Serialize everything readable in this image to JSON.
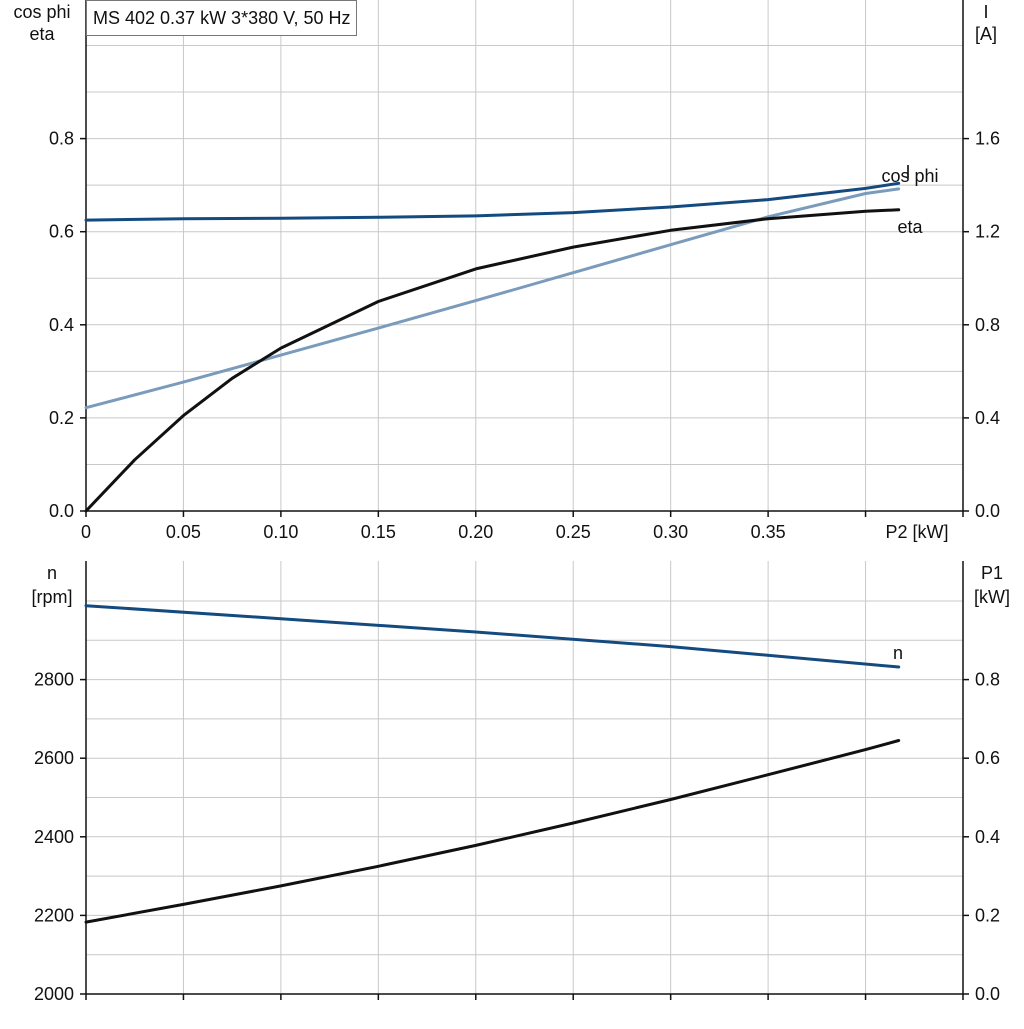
{
  "title": "MS 402   0.37 kW   3*380 V, 50 Hz",
  "colors": {
    "I": "#134a80",
    "cos_phi": "#7a9bbb",
    "eta": "#111111",
    "n": "#134a80",
    "P1": "#111111",
    "grid": "#c8c8c8",
    "axis": "#111111"
  },
  "chart_data": [
    {
      "type": "line",
      "name": "top",
      "xlabel": "P2 [kW]",
      "ylabel_left": [
        "cos phi",
        "eta"
      ],
      "ylabel_right": [
        "I",
        "[A]"
      ],
      "xlim": [
        0,
        0.45
      ],
      "ylim_left": [
        0,
        1.0
      ],
      "ylim_right": [
        0,
        2.0
      ],
      "x_ticks": [
        "0",
        "0.05",
        "0.10",
        "0.15",
        "0.20",
        "0.25",
        "0.30",
        "0.35"
      ],
      "y_left_ticks": [
        "0.0",
        "0.2",
        "0.4",
        "0.6",
        "0.8"
      ],
      "y_right_ticks": [
        "0.0",
        "0.4",
        "0.8",
        "1.2",
        "1.6"
      ],
      "grid": true,
      "series": [
        {
          "name": "I",
          "axis": "right",
          "color_key": "I",
          "x": [
            0,
            0.05,
            0.1,
            0.15,
            0.2,
            0.25,
            0.3,
            0.35,
            0.4,
            0.417
          ],
          "y": [
            1.25,
            1.256,
            1.258,
            1.262,
            1.268,
            1.282,
            1.306,
            1.338,
            1.386,
            1.408
          ]
        },
        {
          "name": "cos phi",
          "axis": "left",
          "color_key": "cos_phi",
          "x": [
            0,
            0.05,
            0.1,
            0.15,
            0.2,
            0.25,
            0.3,
            0.35,
            0.4,
            0.417
          ],
          "y": [
            0.222,
            0.277,
            0.335,
            0.393,
            0.452,
            0.512,
            0.572,
            0.632,
            0.682,
            0.692
          ]
        },
        {
          "name": "eta",
          "axis": "left",
          "color_key": "eta",
          "x": [
            0,
            0.025,
            0.05,
            0.075,
            0.1,
            0.15,
            0.2,
            0.25,
            0.3,
            0.35,
            0.4,
            0.417
          ],
          "y": [
            0.0,
            0.11,
            0.205,
            0.285,
            0.35,
            0.45,
            0.52,
            0.567,
            0.603,
            0.628,
            0.644,
            0.647
          ]
        }
      ]
    },
    {
      "type": "line",
      "name": "bottom",
      "ylabel_left": [
        "n",
        "[rpm]"
      ],
      "ylabel_right": [
        "P1",
        "[kW]"
      ],
      "xlim": [
        0,
        0.45
      ],
      "ylim_left": [
        2000,
        3100
      ],
      "ylim_right": [
        0,
        1.1
      ],
      "y_left_ticks": [
        "2000",
        "2200",
        "2400",
        "2600",
        "2800"
      ],
      "y_right_ticks": [
        "0.0",
        "0.2",
        "0.4",
        "0.6",
        "0.8"
      ],
      "grid": true,
      "series": [
        {
          "name": "n",
          "axis": "left",
          "color_key": "n",
          "x": [
            0,
            0.1,
            0.2,
            0.3,
            0.417
          ],
          "y": [
            2988,
            2955,
            2921,
            2884,
            2832
          ]
        },
        {
          "name": "P1",
          "axis": "right",
          "color_key": "P1",
          "x": [
            0,
            0.05,
            0.1,
            0.15,
            0.2,
            0.25,
            0.3,
            0.35,
            0.4,
            0.417
          ],
          "y": [
            0.183,
            0.228,
            0.275,
            0.325,
            0.378,
            0.435,
            0.495,
            0.558,
            0.622,
            0.645
          ]
        }
      ]
    }
  ]
}
